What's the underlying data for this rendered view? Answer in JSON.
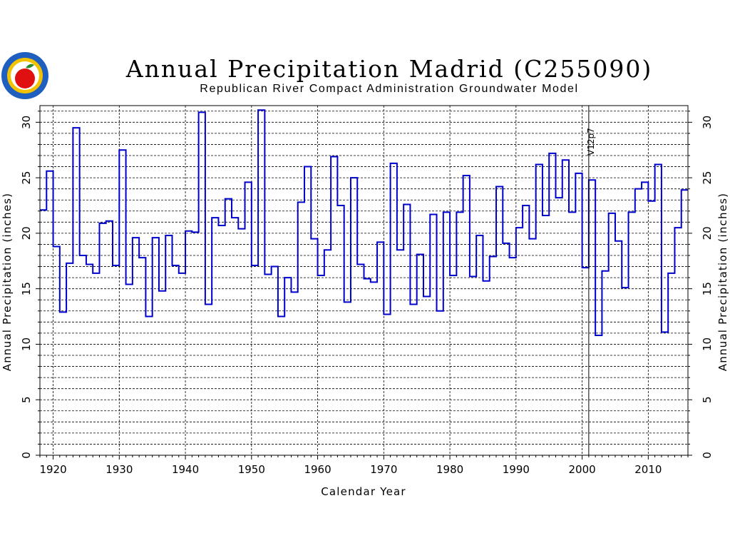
{
  "logo": {
    "icon": "apple-seal-logo",
    "colors": {
      "ring": "#1f5fbf",
      "gold": "#f2c200",
      "apple": "#e01010"
    }
  },
  "chart_data": {
    "type": "line",
    "title": "Annual Precipitation Madrid (C255090)",
    "subtitle": "Republican River Compact Administration Groundwater Model",
    "xlabel": "Calendar Year",
    "ylabel": "Annual Precipitation (inches)",
    "ylabel_right": "Annual Precipitation (inches)",
    "xlim": [
      1918,
      2016
    ],
    "ylim": [
      0,
      31.5
    ],
    "xticks": [
      "1920",
      "1930",
      "1940",
      "1950",
      "1960",
      "1970",
      "1980",
      "1990",
      "2000",
      "2010"
    ],
    "yticks": [
      "0",
      "5",
      "10",
      "15",
      "20",
      "25",
      "30"
    ],
    "grid": true,
    "step": true,
    "line_color": "#0000cc",
    "annotation": {
      "text": "V12p7",
      "x": 2001
    },
    "series": [
      {
        "x": [
          1918,
          1919,
          1920,
          1921,
          1922,
          1923,
          1924,
          1925,
          1926,
          1927,
          1928,
          1929,
          1930,
          1931,
          1932,
          1933,
          1934,
          1935,
          1936,
          1937,
          1938,
          1939,
          1940,
          1941,
          1942,
          1943,
          1944,
          1945,
          1946,
          1947,
          1948,
          1949,
          1950,
          1951,
          1952,
          1953,
          1954,
          1955,
          1956,
          1957,
          1958,
          1959,
          1960,
          1961,
          1962,
          1963,
          1964,
          1965,
          1966,
          1967,
          1968,
          1969,
          1970,
          1971,
          1972,
          1973,
          1974,
          1975,
          1976,
          1977,
          1978,
          1979,
          1980,
          1981,
          1982,
          1983,
          1984,
          1985,
          1986,
          1987,
          1988,
          1989,
          1990,
          1991,
          1992,
          1993,
          1994,
          1995,
          1996,
          1997,
          1998,
          1999,
          2000,
          2001,
          2002,
          2003,
          2004,
          2005,
          2006,
          2007,
          2008,
          2009,
          2010,
          2011,
          2012,
          2013,
          2014,
          2015
        ],
        "values": [
          22.1,
          25.6,
          18.8,
          12.9,
          17.3,
          29.5,
          18.0,
          17.2,
          16.4,
          20.9,
          21.1,
          17.1,
          27.5,
          15.4,
          19.6,
          17.8,
          12.5,
          19.6,
          14.8,
          19.8,
          17.1,
          16.4,
          20.2,
          20.1,
          30.9,
          13.6,
          21.4,
          20.7,
          23.1,
          21.4,
          20.4,
          24.6,
          17.1,
          31.1,
          16.3,
          17.0,
          12.5,
          16.0,
          14.7,
          22.8,
          26.0,
          19.5,
          16.2,
          18.5,
          26.9,
          22.5,
          13.8,
          25.0,
          17.2,
          15.9,
          15.6,
          19.2,
          12.7,
          26.3,
          18.5,
          22.6,
          13.6,
          18.1,
          14.3,
          21.7,
          13.0,
          21.9,
          16.2,
          21.9,
          25.2,
          16.1,
          19.8,
          15.7,
          17.9,
          24.2,
          19.1,
          17.8,
          20.5,
          22.5,
          19.5,
          26.2,
          21.6,
          27.2,
          23.2,
          26.6,
          21.9,
          25.4,
          16.9,
          24.8,
          10.8,
          16.6,
          21.8,
          19.3,
          15.1,
          21.9,
          24.0,
          24.6,
          22.9,
          26.2,
          11.1,
          16.4,
          20.5,
          23.9
        ]
      }
    ]
  }
}
